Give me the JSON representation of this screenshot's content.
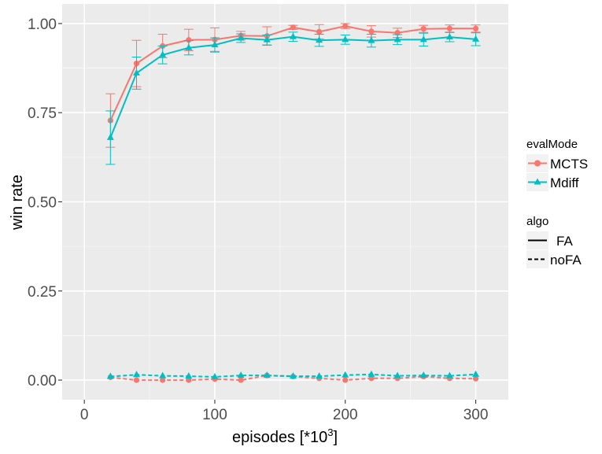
{
  "chart_data": {
    "type": "line",
    "xlabel": "episodes [*10",
    "xlabel_superscript": "3",
    "xlabel_suffix": "]",
    "ylabel": "win rate",
    "xlim": [
      -17,
      325
    ],
    "ylim": [
      -0.055,
      1.055
    ],
    "x_ticks": [
      0,
      100,
      200,
      300
    ],
    "x_tick_labels": [
      "0",
      "100",
      "200",
      "300"
    ],
    "y_ticks": [
      0.0,
      0.25,
      0.5,
      0.75,
      1.0
    ],
    "y_tick_labels": [
      "0.00",
      "0.25",
      "0.50",
      "0.75",
      "1.00"
    ],
    "x": [
      20,
      40,
      60,
      80,
      100,
      120,
      140,
      160,
      180,
      200,
      220,
      240,
      260,
      280,
      300
    ],
    "grid": true,
    "panel_background": "#ebebeb",
    "legend_position": "right",
    "legends": [
      {
        "title": "evalMode",
        "entries": [
          {
            "label": "MCTS",
            "color": "#F8766D",
            "marker": "circle"
          },
          {
            "label": "Mdiff",
            "color": "#00BFC4",
            "marker": "triangle"
          }
        ]
      },
      {
        "title": "algo",
        "entries": [
          {
            "label": "FA",
            "linetype": "solid"
          },
          {
            "label": "noFA",
            "linetype": "dashed"
          }
        ]
      }
    ],
    "series": [
      {
        "evalMode": "MCTS",
        "algo": "FA",
        "color": "#F8766D",
        "marker": "circle",
        "linetype": "solid",
        "values": [
          0.728,
          0.888,
          0.937,
          0.954,
          0.955,
          0.966,
          0.965,
          0.989,
          0.977,
          0.993,
          0.978,
          0.974,
          0.985,
          0.986,
          0.986
        ],
        "err": [
          0.075,
          0.065,
          0.033,
          0.03,
          0.033,
          0.012,
          0.026,
          0.006,
          0.02,
          0.007,
          0.016,
          0.013,
          0.01,
          0.01,
          0.01
        ]
      },
      {
        "evalMode": "Mdiff",
        "algo": "FA",
        "color": "#00BFC4",
        "marker": "triangle",
        "linetype": "solid",
        "values": [
          0.68,
          0.861,
          0.912,
          0.932,
          0.94,
          0.959,
          0.954,
          0.963,
          0.953,
          0.955,
          0.952,
          0.955,
          0.955,
          0.962,
          0.956
        ],
        "err": [
          0.075,
          0.045,
          0.025,
          0.02,
          0.02,
          0.012,
          0.014,
          0.013,
          0.017,
          0.013,
          0.018,
          0.014,
          0.018,
          0.013,
          0.018
        ]
      },
      {
        "evalMode": "MCTS",
        "algo": "noFA",
        "color": "#F8766D",
        "marker": "circle",
        "linetype": "dashed",
        "values": [
          0.008,
          0.0,
          0.0,
          0.0,
          0.003,
          0.0,
          0.013,
          0.01,
          0.005,
          0.0,
          0.005,
          0.005,
          0.01,
          0.005,
          0.004
        ],
        "err": []
      },
      {
        "evalMode": "Mdiff",
        "algo": "noFA",
        "color": "#00BFC4",
        "marker": "triangle",
        "linetype": "dashed",
        "values": [
          0.01,
          0.015,
          0.012,
          0.011,
          0.009,
          0.013,
          0.013,
          0.011,
          0.011,
          0.014,
          0.016,
          0.012,
          0.013,
          0.012,
          0.016
        ],
        "err": []
      }
    ]
  }
}
